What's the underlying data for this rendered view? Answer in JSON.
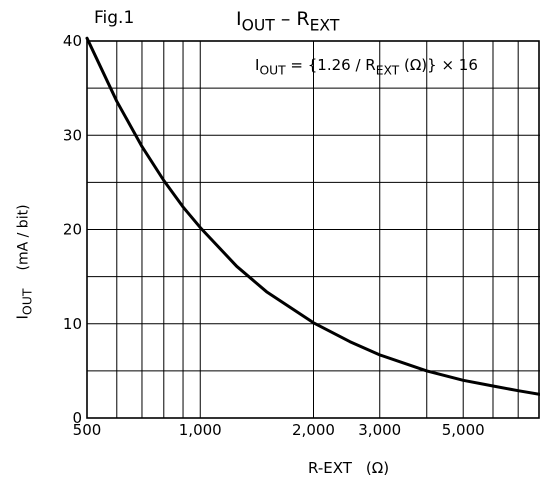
{
  "figure_label": "Fig.1",
  "title": {
    "main": "I",
    "main_sub": "OUT",
    "dash": " – ",
    "second": "R",
    "second_sub": "EXT"
  },
  "formula": {
    "lhs": "I",
    "lhs_sub": "OUT",
    "eq": " = {1.26 / R",
    "mid_sub": "EXT",
    "rhs": " (Ω)} × 16"
  },
  "y_label": {
    "name": "I",
    "name_sub": "OUT",
    "unit": "(mA / bit)"
  },
  "x_label": {
    "name": "R-EXT",
    "unit": "(Ω)"
  },
  "chart_data": {
    "type": "line",
    "x_scale": "log",
    "xlim": [
      500,
      8000
    ],
    "ylim": [
      0,
      40
    ],
    "x_ticks": [
      {
        "value": 500,
        "label": "500"
      },
      {
        "value": 1000,
        "label": "1,000"
      },
      {
        "value": 2000,
        "label": "2,000"
      },
      {
        "value": 3000,
        "label": "3,000"
      },
      {
        "value": 5000,
        "label": "5,000"
      }
    ],
    "y_ticks": [
      {
        "value": 0,
        "label": "0"
      },
      {
        "value": 10,
        "label": "10"
      },
      {
        "value": 20,
        "label": "20"
      },
      {
        "value": 30,
        "label": "30"
      },
      {
        "value": 40,
        "label": "40"
      }
    ],
    "x_gridlines": [
      600,
      700,
      800,
      900,
      1000,
      2000,
      3000,
      4000,
      5000,
      6000,
      7000
    ],
    "y_gridlines": [
      5,
      10,
      15,
      20,
      25,
      30,
      35
    ],
    "grid": true,
    "series": [
      {
        "x": [
          500,
          600,
          700,
          800,
          900,
          1000,
          1250,
          1500,
          2000,
          2500,
          3000,
          4000,
          5000,
          6000,
          7000,
          8000
        ],
        "y": [
          40.3,
          33.6,
          28.8,
          25.2,
          22.4,
          20.2,
          16.1,
          13.4,
          10.1,
          8.1,
          6.7,
          5.0,
          4.0,
          3.4,
          2.9,
          2.5
        ]
      }
    ]
  }
}
